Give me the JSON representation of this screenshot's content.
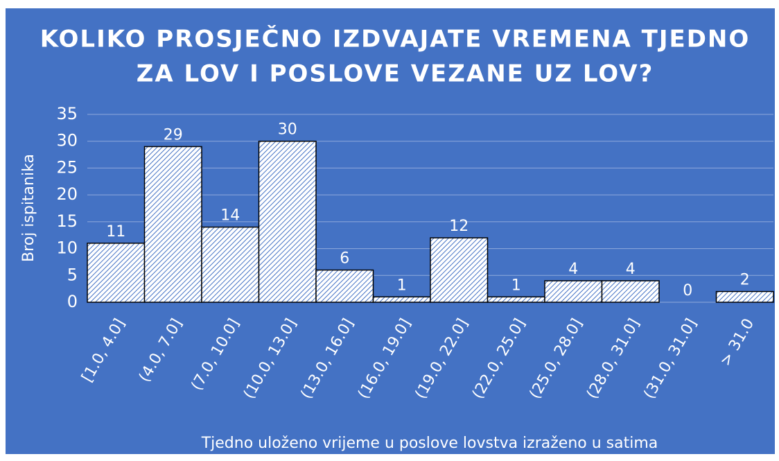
{
  "chart_data": {
    "type": "bar",
    "title": [
      "KOLIKO PROSJEČNO IZDVAJATE VREMENA TJEDNO",
      "ZA LOV I POSLOVE VEZANE UZ LOV?"
    ],
    "x_label": "Tjedno uloženo vrijeme u poslove lovstva izraženo u satima",
    "y_label": "Broj ispitanika",
    "categories": [
      "[1.0, 4.0]",
      "(4.0, 7.0]",
      "(7.0, 10.0]",
      "(10.0, 13.0]",
      "(13.0, 16.0]",
      "(16.0, 19.0]",
      "(19.0, 22.0]",
      "(22.0, 25.0]",
      "(25.0, 28.0]",
      "(28.0, 31.0]",
      "(31.0, 31.0]",
      "> 31.0"
    ],
    "values": [
      11,
      29,
      14,
      30,
      6,
      1,
      12,
      1,
      4,
      4,
      0,
      2
    ],
    "color": "#4472c4",
    "background": "#4472c4",
    "ylim": [
      0,
      35
    ],
    "yticks": [
      0,
      5,
      10,
      15,
      20,
      25,
      30,
      35
    ],
    "grid": true
  }
}
